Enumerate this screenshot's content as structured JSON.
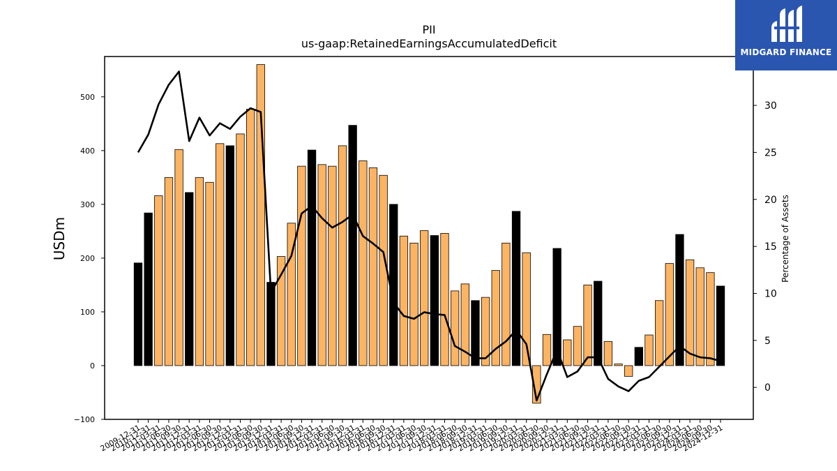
{
  "chart_data": {
    "type": "bar",
    "title": "PII",
    "subtitle": "us-gaap:RetainedEarningsAccumulatedDeficit",
    "ylabel": "USDm",
    "y2label": "Percentage of Assets",
    "ylim": [
      -100,
      575
    ],
    "y2lim": [
      -3.4,
      35.2
    ],
    "yticks": [
      -100,
      0,
      100,
      200,
      300,
      400,
      500
    ],
    "y2ticks": [
      0,
      5,
      10,
      15,
      20,
      25,
      30
    ],
    "categories": [
      "2009-12-31",
      "2010-12-31",
      "2011-03-31",
      "2011-06-30",
      "2011-09-30",
      "2011-12-31",
      "2012-03-31",
      "2012-06-30",
      "2012-09-30",
      "2012-12-31",
      "2013-03-31",
      "2013-06-30",
      "2013-09-30",
      "2013-12-31",
      "2014-03-31",
      "2014-06-30",
      "2014-09-30",
      "2014-12-31",
      "2015-03-31",
      "2015-06-30",
      "2015-09-30",
      "2015-12-31",
      "2016-03-31",
      "2016-06-30",
      "2016-09-30",
      "2016-12-31",
      "2017-03-31",
      "2017-06-30",
      "2017-09-30",
      "2017-12-31",
      "2018-03-31",
      "2018-06-30",
      "2018-09-30",
      "2018-12-31",
      "2019-03-31",
      "2019-06-30",
      "2019-09-30",
      "2019-12-31",
      "2020-03-31",
      "2020-06-30",
      "2020-09-30",
      "2020-12-31",
      "2021-03-31",
      "2021-06-30",
      "2021-09-30",
      "2021-12-31",
      "2022-03-31",
      "2022-06-30",
      "2022-09-30",
      "2022-12-31",
      "2023-03-31",
      "2023-06-30",
      "2023-09-30",
      "2023-12-31",
      "2024-03-31",
      "2024-06-30",
      "2024-09-30",
      "2024-12-31"
    ],
    "series": [
      {
        "kind": "bar",
        "values": [
          191,
          284,
          316,
          350,
          402,
          322,
          350,
          341,
          413,
          409,
          431,
          477,
          560,
          155,
          203,
          265,
          371,
          401,
          374,
          371,
          409,
          447,
          381,
          368,
          354,
          300,
          241,
          228,
          251,
          242,
          246,
          139,
          152,
          121,
          127,
          177,
          228,
          287,
          210,
          -70,
          58,
          218,
          48,
          73,
          150,
          157,
          45,
          3,
          -20,
          34,
          57,
          121,
          190,
          244,
          197,
          182,
          173,
          148
        ],
        "highlight": [
          true,
          true,
          false,
          false,
          false,
          true,
          false,
          false,
          false,
          true,
          false,
          false,
          false,
          true,
          false,
          false,
          false,
          true,
          false,
          false,
          false,
          true,
          false,
          false,
          false,
          true,
          false,
          false,
          false,
          true,
          false,
          false,
          false,
          true,
          false,
          false,
          false,
          true,
          false,
          false,
          false,
          true,
          false,
          false,
          false,
          true,
          false,
          false,
          false,
          true,
          false,
          false,
          false,
          true,
          false,
          false,
          false,
          true
        ]
      },
      {
        "kind": "line",
        "axis": "right",
        "values": [
          25.0,
          26.9,
          30.1,
          32.2,
          33.6,
          26.2,
          28.7,
          26.8,
          28.1,
          27.5,
          28.8,
          29.7,
          29.3,
          10.1,
          12.0,
          14.0,
          18.5,
          19.3,
          18.0,
          17.0,
          17.6,
          18.4,
          16.1,
          15.3,
          14.4,
          9.0,
          7.6,
          7.3,
          8.0,
          7.8,
          7.7,
          4.4,
          3.8,
          3.1,
          3.1,
          4.1,
          4.9,
          6.1,
          4.6,
          -1.4,
          1.4,
          4.0,
          1.1,
          1.7,
          3.2,
          3.2,
          0.9,
          0.1,
          -0.4,
          0.7,
          1.1,
          2.2,
          3.3,
          4.4,
          3.6,
          3.2,
          3.1,
          2.8
        ]
      }
    ],
    "colors": {
      "bar_default": "#fdb462",
      "bar_highlight": "#000000",
      "bar_edge": "#000000",
      "line": "#000000"
    },
    "grid": false
  },
  "logo": {
    "name": "midgard-finance-logo",
    "text": "MIDGARD FINANCE",
    "background": "#2a56b0"
  }
}
